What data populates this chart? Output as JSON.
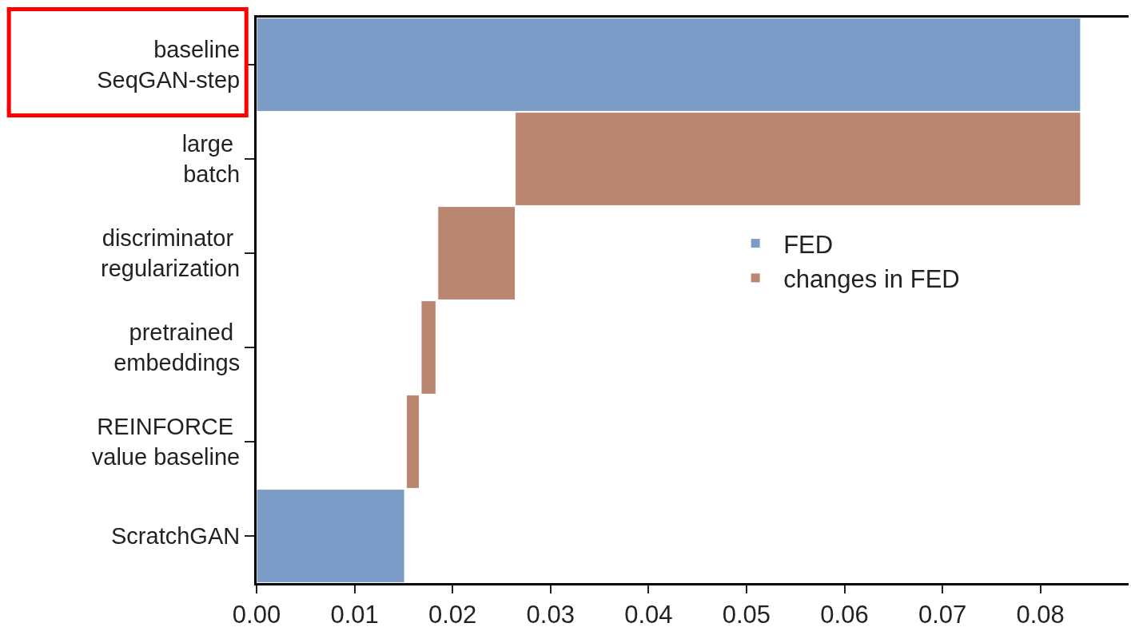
{
  "chart_data": {
    "type": "bar",
    "orientation": "horizontal",
    "categories": [
      "baseline\nSeqGAN-step",
      "large \nbatch",
      "discriminator \nregularization",
      "pretrained \nembeddings",
      "REINFORCE \nvalue baseline",
      "ScratchGAN"
    ],
    "series": [
      {
        "name": "FED",
        "color": "#7b9cc6",
        "values": [
          0.0841,
          null,
          null,
          null,
          null,
          0.0151
        ]
      },
      {
        "name": "changes in FED",
        "color": "#bb8670",
        "base": [
          null,
          0.0264,
          0.0185,
          0.0168,
          0.0153,
          null
        ],
        "values": [
          null,
          0.0577,
          0.0079,
          0.0015,
          0.0013,
          null
        ]
      }
    ],
    "xlim": [
      0,
      0.089
    ],
    "xticks": [
      {
        "value": 0,
        "label": "0.00"
      },
      0.01,
      0.02,
      0.03,
      0.04,
      0.05,
      0.06,
      0.07,
      0.08
    ],
    "legend": "right"
  }
}
